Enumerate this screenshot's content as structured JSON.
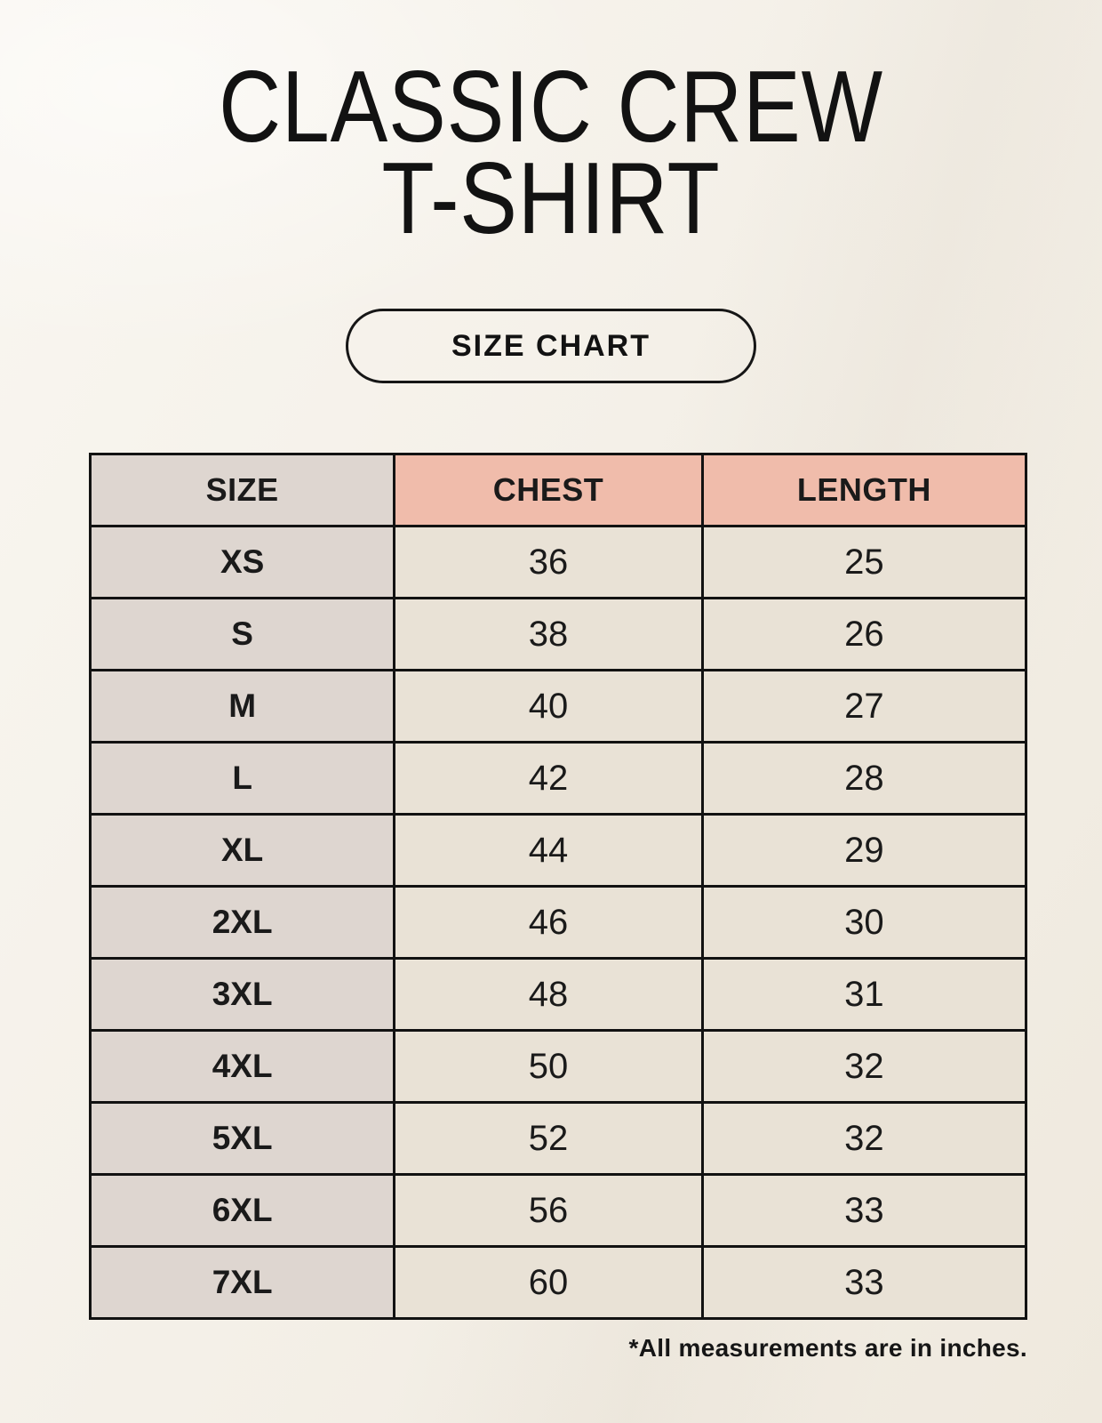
{
  "header": {
    "title_line1": "CLASSIC CREW",
    "title_line2": "T-SHIRT",
    "size_chart_label": "SIZE CHART"
  },
  "table": {
    "columns": [
      "SIZE",
      "CHEST",
      "LENGTH"
    ],
    "rows": [
      {
        "size": "XS",
        "chest": "36",
        "length": "25"
      },
      {
        "size": "S",
        "chest": "38",
        "length": "26"
      },
      {
        "size": "M",
        "chest": "40",
        "length": "27"
      },
      {
        "size": "L",
        "chest": "42",
        "length": "28"
      },
      {
        "size": "XL",
        "chest": "44",
        "length": "29"
      },
      {
        "size": "2XL",
        "chest": "46",
        "length": "30"
      },
      {
        "size": "3XL",
        "chest": "48",
        "length": "31"
      },
      {
        "size": "4XL",
        "chest": "50",
        "length": "32"
      },
      {
        "size": "5XL",
        "chest": "52",
        "length": "32"
      },
      {
        "size": "6XL",
        "chest": "56",
        "length": "33"
      },
      {
        "size": "7XL",
        "chest": "60",
        "length": "33"
      }
    ]
  },
  "footnote": "*All measurements are in inches.",
  "colors": {
    "background": "#f4f0e8",
    "text": "#1a1a1a",
    "table_border": "#121212",
    "size_col_bg": "#ded6d0",
    "measure_header_bg": "#f0bcab",
    "data_cell_bg": "#e9e2d6"
  }
}
